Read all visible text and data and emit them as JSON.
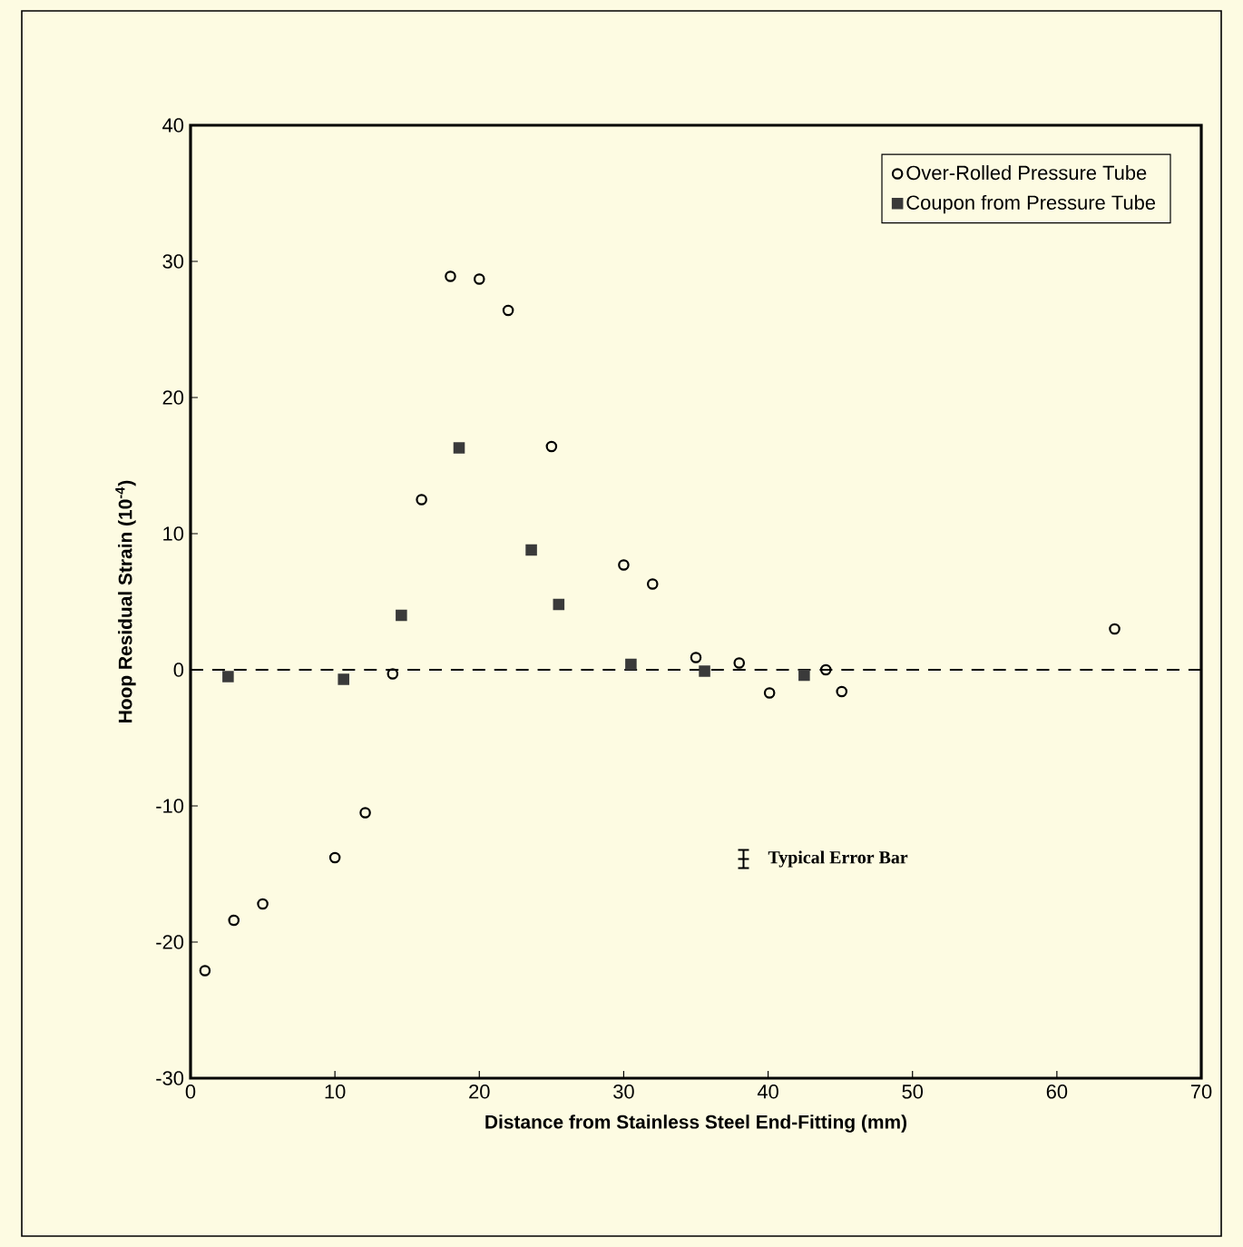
{
  "chart_data": {
    "type": "scatter",
    "xlabel": "Distance from Stainless Steel End-Fitting (mm)",
    "ylabel": "Hoop Residual Strain (10$^{-4}$)",
    "xlim": [
      0,
      70
    ],
    "xticks": [
      0,
      10,
      20,
      30,
      40,
      50,
      60,
      70
    ],
    "ylim": [
      -30,
      40
    ],
    "yticks": [
      -30,
      -20,
      -10,
      0,
      10,
      20,
      30,
      40
    ],
    "grid": false,
    "legend": "top right",
    "series": [
      {
        "name": "Over-Rolled Pressure Tube",
        "color": "#000000",
        "marker": "circle",
        "x": [
          1.0,
          3.0,
          5.0,
          10.0,
          12.1,
          14.0,
          16.0,
          18.0,
          20.0,
          22.0,
          25.0,
          30.0,
          32.0,
          35.0,
          38.0,
          40.1,
          44.0,
          45.1,
          64.0
        ],
        "values": [
          -22.1,
          -18.4,
          -17.2,
          -13.8,
          -10.5,
          -0.3,
          12.5,
          28.9,
          28.7,
          26.4,
          16.4,
          7.7,
          6.3,
          0.9,
          0.5,
          -1.7,
          0.0,
          -1.6,
          3.0
        ]
      },
      {
        "name": "Coupon from Pressure Tube",
        "color": "#3a3a3a",
        "marker": "square",
        "x": [
          2.6,
          10.6,
          14.6,
          18.6,
          23.6,
          25.5,
          30.5,
          35.6,
          42.5
        ],
        "values": [
          -0.5,
          -0.7,
          4.0,
          16.3,
          8.8,
          4.8,
          0.4,
          -0.1,
          -0.4
        ]
      }
    ],
    "ref_lines": [
      {
        "axis": "y",
        "value": 0,
        "color": "#000000",
        "line_style": "dashed"
      }
    ],
    "annotations": [
      "Typical Error Bar"
    ]
  }
}
